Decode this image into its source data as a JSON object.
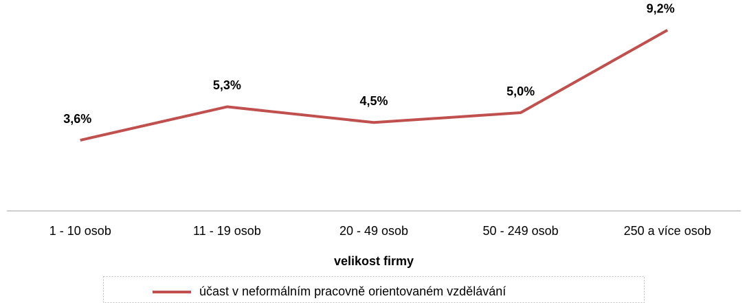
{
  "chart_data": {
    "type": "line",
    "xlabel": "velikost firmy",
    "categories": [
      "1 - 10 osob",
      "11 - 19 osob",
      "20 - 49 osob",
      "50 - 249 osob",
      "250 a více osob"
    ],
    "series": [
      {
        "name": "účast v neformálním pracovně orientovaném vzdělávání",
        "color": "#c0504d",
        "values": [
          3.6,
          5.3,
          4.5,
          5.0,
          9.2
        ],
        "value_labels": [
          "3,6%",
          "5,3%",
          "4,5%",
          "5,0%",
          "9,2%"
        ]
      }
    ],
    "ylim": [
      0,
      10
    ],
    "legend": "bottom"
  }
}
